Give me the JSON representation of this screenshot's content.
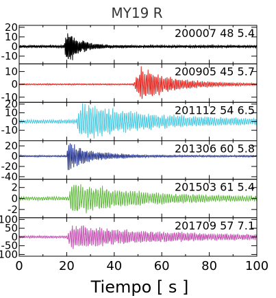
{
  "chart_data": {
    "type": "line",
    "title": "MY19  R",
    "xlabel": "Tiempo  [  s  ]",
    "xlim": [
      0,
      100
    ],
    "xticks": [
      0,
      20,
      40,
      60,
      80,
      100
    ],
    "grid": false,
    "panels": [
      {
        "label": "200007  48  5.4",
        "color": "#000000",
        "ylim": [
          -18,
          22
        ],
        "yticks": [
          {
            "value": 20,
            "label": "20"
          },
          {
            "value": 10,
            "label": "10"
          },
          {
            "value": 0,
            "label": "0"
          },
          {
            "value": -10,
            "label": "-10"
          }
        ],
        "onset": 19,
        "peak_time": 20,
        "peak_amp": 18,
        "decay": 5,
        "freq": 2.2,
        "noise": 1.2
      },
      {
        "label": "200905  45  5.7",
        "color": "#e3231c",
        "ylim": [
          -14,
          16
        ],
        "yticks": [
          {
            "value": 10,
            "label": "10"
          },
          {
            "value": 0,
            "label": "0"
          },
          {
            "value": -10,
            "label": "-10"
          }
        ],
        "onset": 48,
        "peak_time": 51,
        "peak_amp": 12,
        "decay": 14,
        "freq": 1.4,
        "noise": 0.5
      },
      {
        "label": "201112  54  6.5",
        "color": "#44c7e0",
        "ylim": [
          -22,
          22
        ],
        "yticks": [
          {
            "value": 20,
            "label": "20"
          },
          {
            "value": 10,
            "label": "10"
          },
          {
            "value": 0,
            "label": "0"
          },
          {
            "value": -10,
            "label": "-10"
          }
        ],
        "onset": 24,
        "peak_time": 26,
        "peak_amp": 18,
        "decay": 30,
        "freq": 1.2,
        "noise": 2.0
      },
      {
        "label": "201306  60  5.8",
        "color": "#2b3a8f",
        "ylim": [
          -45,
          30
        ],
        "yticks": [
          {
            "value": 20,
            "label": "20"
          },
          {
            "value": 0,
            "label": "0"
          },
          {
            "value": -20,
            "label": "-20"
          },
          {
            "value": -40,
            "label": "-40"
          }
        ],
        "onset": 20,
        "peak_time": 20.5,
        "peak_amp": 25,
        "decay": 10,
        "freq": 1.6,
        "noise": 1.5
      },
      {
        "label": "201503  61  5.4",
        "color": "#5cb738",
        "ylim": [
          -3.5,
          3.5
        ],
        "yticks": [
          {
            "value": 2,
            "label": "2"
          },
          {
            "value": 0,
            "label": "0"
          },
          {
            "value": -2,
            "label": "-2"
          }
        ],
        "onset": 21,
        "peak_time": 22,
        "peak_amp": 2.6,
        "decay": 28,
        "freq": 1.1,
        "noise": 0.3
      },
      {
        "label": "201709  57  7.1",
        "color": "#c24fb0",
        "ylim": [
          -110,
          110
        ],
        "yticks": [
          {
            "value": 100,
            "label": "100"
          },
          {
            "value": 50,
            "label": "50"
          },
          {
            "value": 0,
            "label": "0"
          },
          {
            "value": -50,
            "label": "-50"
          },
          {
            "value": -100,
            "label": "-100"
          }
        ],
        "onset": 20,
        "peak_time": 22,
        "peak_amp": 60,
        "decay": 40,
        "freq": 1.3,
        "noise": 6
      }
    ]
  }
}
